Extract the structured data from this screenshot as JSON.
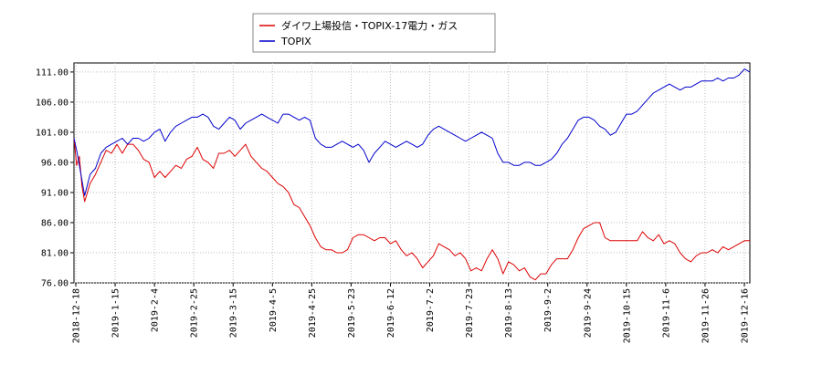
{
  "chart_data": {
    "type": "line",
    "title": "",
    "xlabel": "",
    "ylabel": "",
    "ylim": [
      76.0,
      112.5
    ],
    "y_ticks": [
      "76.00",
      "81.00",
      "86.00",
      "91.00",
      "96.00",
      "101.00",
      "106.00",
      "111.00"
    ],
    "x_ticks": [
      "2018-12-18",
      "2019-1-15",
      "2019-2-4",
      "2019-2-25",
      "2019-3-15",
      "2019-4-5",
      "2019-4-25",
      "2019-5-23",
      "2019-6-12",
      "2019-7-2",
      "2019-7-23",
      "2019-8-13",
      "2019-9-2",
      "2019-9-24",
      "2019-10-15",
      "2019-11-6",
      "2019-11-26",
      "2019-12-16"
    ],
    "grid": true,
    "legend_position": "top-center",
    "series": [
      {
        "name": "ダイワ上場投信・TOPIX-17電力・ガス",
        "color": "#dd0000",
        "points": [
          [
            0,
            100.0
          ],
          [
            0.5,
            95.5
          ],
          [
            1.0,
            97.0
          ],
          [
            1.5,
            92.0
          ],
          [
            2.0,
            89.5
          ],
          [
            3.0,
            92.5
          ],
          [
            4.0,
            94.0
          ],
          [
            5.0,
            96.0
          ],
          [
            6.0,
            98.0
          ],
          [
            7.0,
            97.5
          ],
          [
            8.0,
            99.0
          ],
          [
            9.0,
            97.5
          ],
          [
            10.0,
            99.0
          ],
          [
            11.0,
            99.0
          ],
          [
            12.0,
            98.0
          ],
          [
            13.0,
            96.5
          ],
          [
            14.0,
            96.0
          ],
          [
            15.0,
            93.5
          ],
          [
            16.0,
            94.5
          ],
          [
            17.0,
            93.5
          ],
          [
            18.0,
            94.5
          ],
          [
            19.0,
            95.5
          ],
          [
            20.0,
            95.0
          ],
          [
            21.0,
            96.5
          ],
          [
            22.0,
            97.0
          ],
          [
            23.0,
            98.5
          ],
          [
            24.0,
            96.5
          ],
          [
            25.0,
            96.0
          ],
          [
            26.0,
            95.0
          ],
          [
            27.0,
            97.5
          ],
          [
            28.0,
            97.5
          ],
          [
            29.0,
            98.0
          ],
          [
            30.0,
            97.0
          ],
          [
            31.0,
            98.0
          ],
          [
            32.0,
            99.0
          ],
          [
            33.0,
            97.0
          ],
          [
            34.0,
            96.0
          ],
          [
            35.0,
            95.0
          ],
          [
            36.0,
            94.5
          ],
          [
            37.0,
            93.5
          ],
          [
            38.0,
            92.5
          ],
          [
            39.0,
            92.0
          ],
          [
            40.0,
            91.0
          ],
          [
            41.0,
            89.0
          ],
          [
            42.0,
            88.5
          ],
          [
            43.0,
            87.0
          ],
          [
            44.0,
            85.5
          ],
          [
            45.0,
            83.5
          ],
          [
            46.0,
            82.0
          ],
          [
            47.0,
            81.5
          ],
          [
            48.0,
            81.5
          ],
          [
            49.0,
            81.0
          ],
          [
            50.0,
            81.0
          ],
          [
            51.0,
            81.5
          ],
          [
            52.0,
            83.5
          ],
          [
            53.0,
            84.0
          ],
          [
            54.0,
            84.0
          ],
          [
            55.0,
            83.5
          ],
          [
            56.0,
            83.0
          ],
          [
            57.0,
            83.5
          ],
          [
            58.0,
            83.5
          ],
          [
            59.0,
            82.5
          ],
          [
            60.0,
            83.0
          ],
          [
            61.0,
            81.5
          ],
          [
            62.0,
            80.5
          ],
          [
            63.0,
            81.0
          ],
          [
            64.0,
            80.0
          ],
          [
            65.0,
            78.5
          ],
          [
            66.0,
            79.5
          ],
          [
            67.0,
            80.5
          ],
          [
            68.0,
            82.5
          ],
          [
            69.0,
            82.0
          ],
          [
            70.0,
            81.5
          ],
          [
            71.0,
            80.5
          ],
          [
            72.0,
            81.0
          ],
          [
            73.0,
            80.0
          ],
          [
            74.0,
            78.0
          ],
          [
            75.0,
            78.5
          ],
          [
            76.0,
            78.0
          ],
          [
            77.0,
            80.0
          ],
          [
            78.0,
            81.5
          ],
          [
            79.0,
            80.0
          ],
          [
            80.0,
            77.5
          ],
          [
            81.0,
            79.5
          ],
          [
            82.0,
            79.0
          ],
          [
            83.0,
            78.0
          ],
          [
            84.0,
            78.5
          ],
          [
            85.0,
            77.0
          ],
          [
            86.0,
            76.5
          ],
          [
            87.0,
            77.5
          ],
          [
            88.0,
            77.5
          ],
          [
            89.0,
            79.0
          ],
          [
            90.0,
            80.0
          ],
          [
            91.0,
            80.0
          ],
          [
            92.0,
            80.0
          ],
          [
            93.0,
            81.5
          ],
          [
            94.0,
            83.5
          ],
          [
            95.0,
            85.0
          ],
          [
            96.0,
            85.5
          ],
          [
            97.0,
            86.0
          ],
          [
            98.0,
            86.0
          ],
          [
            99.0,
            83.5
          ],
          [
            100.0,
            83.0
          ],
          [
            101.0,
            83.0
          ],
          [
            102.0,
            83.0
          ],
          [
            103.0,
            83.0
          ],
          [
            104.0,
            83.0
          ],
          [
            105.0,
            83.0
          ],
          [
            106.0,
            84.5
          ],
          [
            107.0,
            83.5
          ],
          [
            108.0,
            83.0
          ],
          [
            109.0,
            84.0
          ],
          [
            110.0,
            82.5
          ],
          [
            111.0,
            83.0
          ],
          [
            112.0,
            82.5
          ],
          [
            113.0,
            81.0
          ],
          [
            114.0,
            80.0
          ],
          [
            115.0,
            79.5
          ],
          [
            116.0,
            80.5
          ],
          [
            117.0,
            81.0
          ],
          [
            118.0,
            81.0
          ],
          [
            119.0,
            81.5
          ],
          [
            120.0,
            81.0
          ],
          [
            121.0,
            82.0
          ],
          [
            122.0,
            81.5
          ],
          [
            123.0,
            82.0
          ],
          [
            124.0,
            82.5
          ],
          [
            125.0,
            83.0
          ],
          [
            126.0,
            83.0
          ]
        ]
      },
      {
        "name": "TOPIX",
        "color": "#0000cc",
        "points": [
          [
            0,
            100.0
          ],
          [
            0.5,
            98.0
          ],
          [
            1.0,
            95.5
          ],
          [
            1.5,
            93.0
          ],
          [
            2.0,
            90.5
          ],
          [
            3.0,
            94.0
          ],
          [
            4.0,
            95.0
          ],
          [
            5.0,
            97.5
          ],
          [
            6.0,
            98.5
          ],
          [
            7.0,
            99.0
          ],
          [
            8.0,
            99.5
          ],
          [
            9.0,
            100.0
          ],
          [
            10.0,
            99.0
          ],
          [
            11.0,
            100.0
          ],
          [
            12.0,
            100.0
          ],
          [
            13.0,
            99.5
          ],
          [
            14.0,
            100.0
          ],
          [
            15.0,
            101.0
          ],
          [
            16.0,
            101.5
          ],
          [
            17.0,
            99.5
          ],
          [
            18.0,
            101.0
          ],
          [
            19.0,
            102.0
          ],
          [
            20.0,
            102.5
          ],
          [
            21.0,
            103.0
          ],
          [
            22.0,
            103.5
          ],
          [
            23.0,
            103.5
          ],
          [
            24.0,
            104.0
          ],
          [
            25.0,
            103.5
          ],
          [
            26.0,
            102.0
          ],
          [
            27.0,
            101.5
          ],
          [
            28.0,
            102.5
          ],
          [
            29.0,
            103.5
          ],
          [
            30.0,
            103.0
          ],
          [
            31.0,
            101.5
          ],
          [
            32.0,
            102.5
          ],
          [
            33.0,
            103.0
          ],
          [
            34.0,
            103.5
          ],
          [
            35.0,
            104.0
          ],
          [
            36.0,
            103.5
          ],
          [
            37.0,
            103.0
          ],
          [
            38.0,
            102.5
          ],
          [
            39.0,
            104.0
          ],
          [
            40.0,
            104.0
          ],
          [
            41.0,
            103.5
          ],
          [
            42.0,
            103.0
          ],
          [
            43.0,
            103.5
          ],
          [
            44.0,
            103.0
          ],
          [
            45.0,
            100.0
          ],
          [
            46.0,
            99.0
          ],
          [
            47.0,
            98.5
          ],
          [
            48.0,
            98.5
          ],
          [
            49.0,
            99.0
          ],
          [
            50.0,
            99.5
          ],
          [
            51.0,
            99.0
          ],
          [
            52.0,
            98.5
          ],
          [
            53.0,
            99.0
          ],
          [
            54.0,
            98.0
          ],
          [
            55.0,
            96.0
          ],
          [
            56.0,
            97.5
          ],
          [
            57.0,
            98.5
          ],
          [
            58.0,
            99.5
          ],
          [
            59.0,
            99.0
          ],
          [
            60.0,
            98.5
          ],
          [
            61.0,
            99.0
          ],
          [
            62.0,
            99.5
          ],
          [
            63.0,
            99.0
          ],
          [
            64.0,
            98.5
          ],
          [
            65.0,
            99.0
          ],
          [
            66.0,
            100.5
          ],
          [
            67.0,
            101.5
          ],
          [
            68.0,
            102.0
          ],
          [
            69.0,
            101.5
          ],
          [
            70.0,
            101.0
          ],
          [
            71.0,
            100.5
          ],
          [
            72.0,
            100.0
          ],
          [
            73.0,
            99.5
          ],
          [
            74.0,
            100.0
          ],
          [
            75.0,
            100.5
          ],
          [
            76.0,
            101.0
          ],
          [
            77.0,
            100.5
          ],
          [
            78.0,
            100.0
          ],
          [
            79.0,
            97.5
          ],
          [
            80.0,
            96.0
          ],
          [
            81.0,
            96.0
          ],
          [
            82.0,
            95.5
          ],
          [
            83.0,
            95.5
          ],
          [
            84.0,
            96.0
          ],
          [
            85.0,
            96.0
          ],
          [
            86.0,
            95.5
          ],
          [
            87.0,
            95.5
          ],
          [
            88.0,
            96.0
          ],
          [
            89.0,
            96.5
          ],
          [
            90.0,
            97.5
          ],
          [
            91.0,
            99.0
          ],
          [
            92.0,
            100.0
          ],
          [
            93.0,
            101.5
          ],
          [
            94.0,
            103.0
          ],
          [
            95.0,
            103.5
          ],
          [
            96.0,
            103.5
          ],
          [
            97.0,
            103.0
          ],
          [
            98.0,
            102.0
          ],
          [
            99.0,
            101.5
          ],
          [
            100.0,
            100.5
          ],
          [
            101.0,
            101.0
          ],
          [
            102.0,
            102.5
          ],
          [
            103.0,
            104.0
          ],
          [
            104.0,
            104.0
          ],
          [
            105.0,
            104.5
          ],
          [
            106.0,
            105.5
          ],
          [
            107.0,
            106.5
          ],
          [
            108.0,
            107.5
          ],
          [
            109.0,
            108.0
          ],
          [
            110.0,
            108.5
          ],
          [
            111.0,
            109.0
          ],
          [
            112.0,
            108.5
          ],
          [
            113.0,
            108.0
          ],
          [
            114.0,
            108.5
          ],
          [
            115.0,
            108.5
          ],
          [
            116.0,
            109.0
          ],
          [
            117.0,
            109.5
          ],
          [
            118.0,
            109.5
          ],
          [
            119.0,
            109.5
          ],
          [
            120.0,
            110.0
          ],
          [
            121.0,
            109.5
          ],
          [
            122.0,
            110.0
          ],
          [
            123.0,
            110.0
          ],
          [
            124.0,
            110.5
          ],
          [
            125.0,
            111.5
          ],
          [
            126.0,
            111.0
          ]
        ]
      }
    ]
  }
}
